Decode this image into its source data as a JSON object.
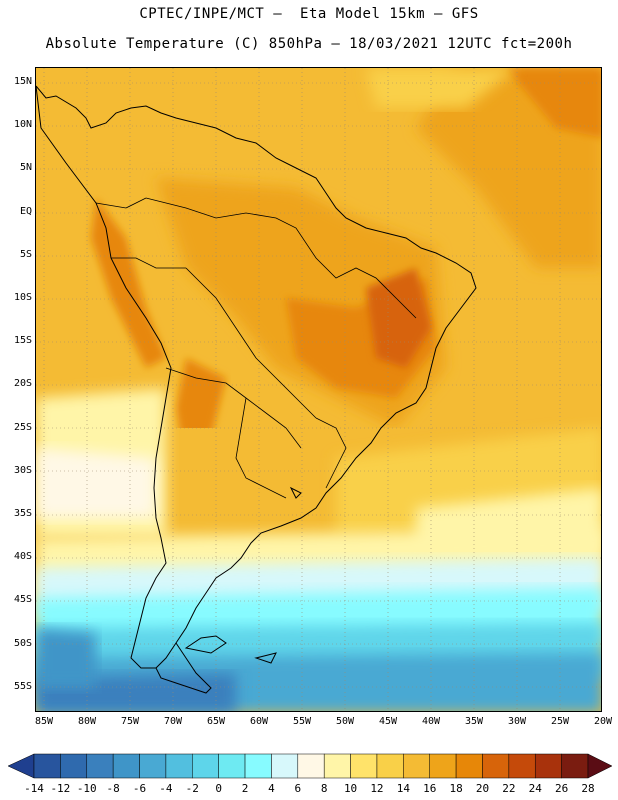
{
  "title_line1": "CPTEC/INPE/MCT –  Eta Model 15km – GFS",
  "title_line2": "Absolute Temperature (C) 850hPa – 18/03/2021 12UTC fct=200h",
  "lat_labels": [
    "15N",
    "10N",
    "5N",
    "EQ",
    "5S",
    "10S",
    "15S",
    "20S",
    "25S",
    "30S",
    "35S",
    "40S",
    "45S",
    "50S",
    "55S"
  ],
  "lon_labels": [
    "85W",
    "80W",
    "75W",
    "70W",
    "65W",
    "60W",
    "55W",
    "50W",
    "45W",
    "40W",
    "35W",
    "30W",
    "25W",
    "20W"
  ],
  "colorbar": {
    "labels": [
      "-14",
      "-12",
      "-10",
      "-8",
      "-6",
      "-4",
      "-2",
      "0",
      "2",
      "4",
      "6",
      "8",
      "10",
      "12",
      "14",
      "16",
      "18",
      "20",
      "22",
      "24",
      "26",
      "28"
    ],
    "colors": [
      "#1f3f8f",
      "#28559e",
      "#2f6aae",
      "#3a80bd",
      "#3f95c8",
      "#49a9d3",
      "#52bfdf",
      "#5ed5ea",
      "#6eeaf2",
      "#87fbff",
      "#d7f8fb",
      "#fff8e6",
      "#fff5a8",
      "#ffe36a",
      "#f9d048",
      "#f4bb34",
      "#eea41a",
      "#e78708",
      "#d7640a",
      "#c54a0a",
      "#a8320c",
      "#7a1c10",
      "#5a0c14"
    ]
  }
}
